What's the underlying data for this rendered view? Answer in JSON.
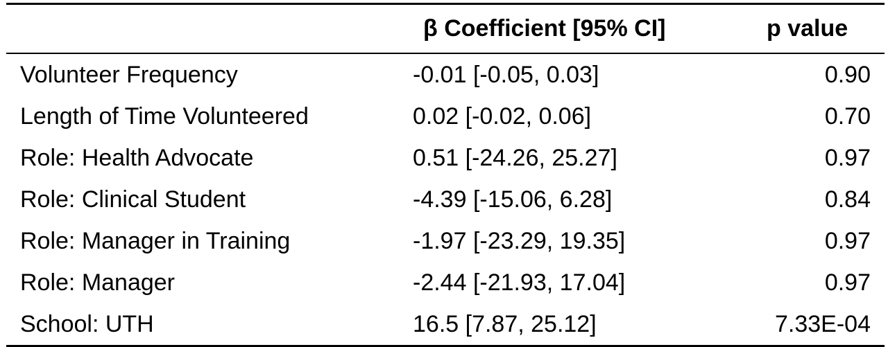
{
  "table": {
    "headers": {
      "label": "",
      "coefficient": "β Coefficient [95% CI]",
      "p_value": "p value"
    },
    "rows": [
      {
        "label": "Volunteer Frequency",
        "coefficient": "-0.01 [-0.05, 0.03]",
        "p_value": "0.90"
      },
      {
        "label": "Length of Time Volunteered",
        "coefficient": "0.02 [-0.02, 0.06]",
        "p_value": "0.70"
      },
      {
        "label": "Role: Health Advocate",
        "coefficient": "0.51 [-24.26, 25.27]",
        "p_value": "0.97"
      },
      {
        "label": "Role: Clinical Student",
        "coefficient": "-4.39 [-15.06, 6.28]",
        "p_value": "0.84"
      },
      {
        "label": "Role: Manager in Training",
        "coefficient": "-1.97 [-23.29, 19.35]",
        "p_value": "0.97"
      },
      {
        "label": "Role: Manager",
        "coefficient": "-2.44 [-21.93, 17.04]",
        "p_value": "0.97"
      },
      {
        "label": "School: UTH",
        "coefficient": "16.5 [7.87, 25.12]",
        "p_value": "7.33E-04"
      }
    ]
  }
}
